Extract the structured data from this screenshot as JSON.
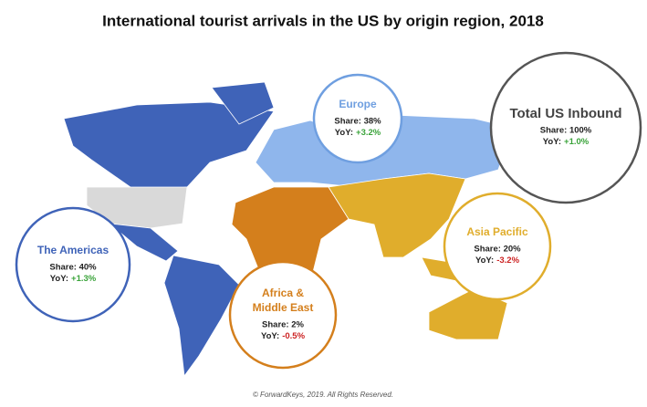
{
  "header": {
    "title": "International tourist arrivals in the US by origin region, 2018"
  },
  "regions": [
    {
      "name": [
        "Europe"
      ],
      "share": "Share: 38%",
      "yoy_label": "YoY:",
      "yoy": "+3.2%",
      "color": "#6f9fe0",
      "yoy_color": "#3aa33a"
    },
    {
      "name": [
        "Total US Inbound"
      ],
      "share": "Share: 100%",
      "yoy_label": "YoY:",
      "yoy": "+1.0%",
      "color": "#555555",
      "yoy_color": "#3aa33a"
    },
    {
      "name": [
        "The Americas"
      ],
      "share": "Share: 40%",
      "yoy_label": "YoY:",
      "yoy": "+1.3%",
      "color": "#3f63b8",
      "yoy_color": "#3aa33a"
    },
    {
      "name": [
        "Africa &",
        "Middle East"
      ],
      "share": "Share: 2%",
      "yoy_label": "YoY:",
      "yoy": "-0.5%",
      "color": "#d47f1c",
      "yoy_color": "#cc2222"
    },
    {
      "name": [
        "Asia Pacific"
      ],
      "share": "Share: 20%",
      "yoy_label": "YoY:",
      "yoy": "-3.2%",
      "color": "#e0ad2c",
      "yoy_color": "#cc2222"
    }
  ],
  "footer": {
    "text": "© ForwardKeys, 2019. All Rights Reserved."
  }
}
